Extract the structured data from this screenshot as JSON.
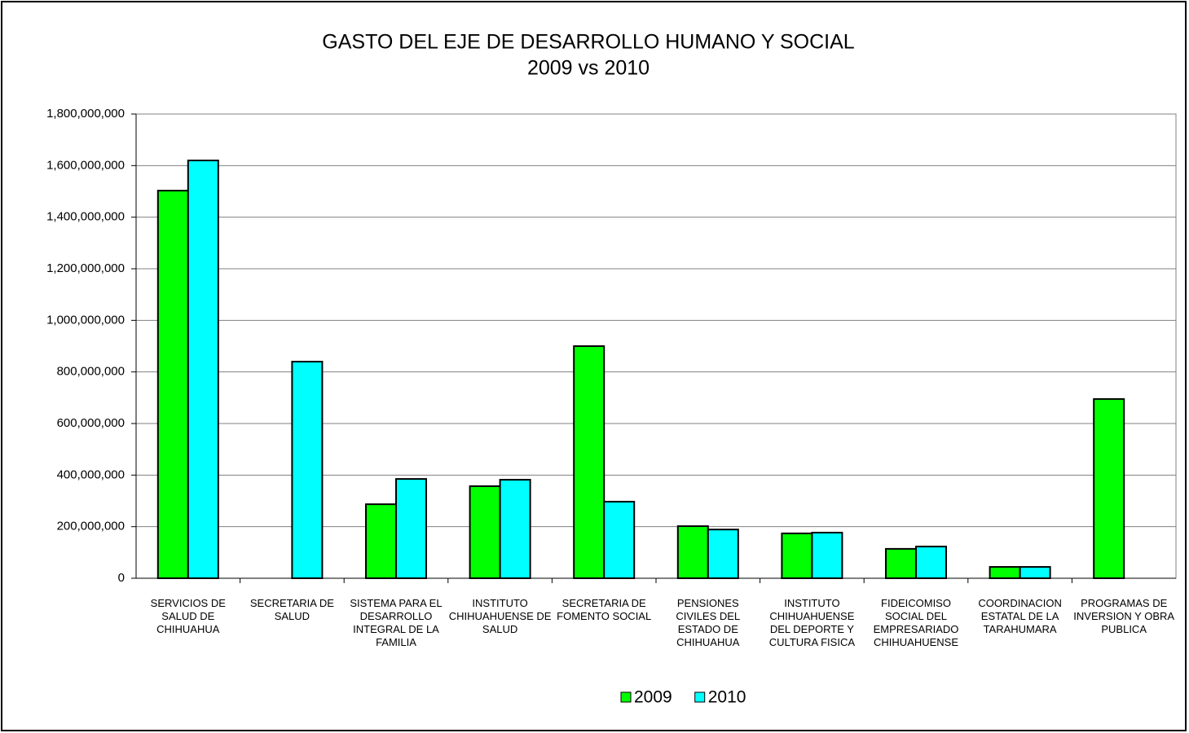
{
  "chart_data": {
    "type": "bar",
    "title": "GASTO DEL EJE DE DESARROLLO HUMANO Y SOCIAL",
    "subtitle": "2009 vs 2010",
    "categories": [
      "SERVICIOS DE SALUD DE CHIHUAHUA",
      "SECRETARIA DE SALUD",
      "SISTEMA PARA EL DESARROLLO INTEGRAL DE LA FAMILIA",
      "INSTITUTO CHIHUAHUENSE DE SALUD",
      "SECRETARIA DE FOMENTO SOCIAL",
      "PENSIONES CIVILES DEL ESTADO DE CHIHUAHUA",
      "INSTITUTO CHIHUAHUENSE DEL DEPORTE Y CULTURA FISICA",
      "FIDEICOMISO SOCIAL DEL EMPRESARIADO CHIHUAHUENSE",
      "COORDINACION ESTATAL DE LA TARAHUMARA",
      "PROGRAMAS DE INVERSION Y OBRA PUBLICA"
    ],
    "series": [
      {
        "name": "2009",
        "color": "#00ff00",
        "values": [
          1503000000,
          0,
          287000000,
          357000000,
          900000000,
          202000000,
          174000000,
          114000000,
          44000000,
          695000000
        ]
      },
      {
        "name": "2010",
        "color": "#00ffff",
        "values": [
          1620000000,
          840000000,
          385000000,
          382000000,
          297000000,
          189000000,
          177000000,
          123000000,
          44000000,
          0
        ]
      }
    ],
    "ylim": [
      0,
      1800000000
    ],
    "yticks": [
      0,
      {
        "value": 200000000,
        "label": "200,000,000"
      },
      {
        "value": 400000000,
        "label": "400,000,000"
      },
      {
        "value": 600000000,
        "label": "600,000,000"
      },
      {
        "value": 800000000,
        "label": "800,000,000"
      },
      {
        "value": 1000000000,
        "label": "1,000,000,000"
      },
      {
        "value": 1200000000,
        "label": "1,200,000,000"
      },
      {
        "value": 1400000000,
        "label": "1,400,000,000"
      },
      {
        "value": 1600000000,
        "label": "1,600,000,000"
      },
      {
        "value": 1800000000,
        "label": "1,800,000,000"
      }
    ],
    "grid": true,
    "legend": "bottom"
  }
}
